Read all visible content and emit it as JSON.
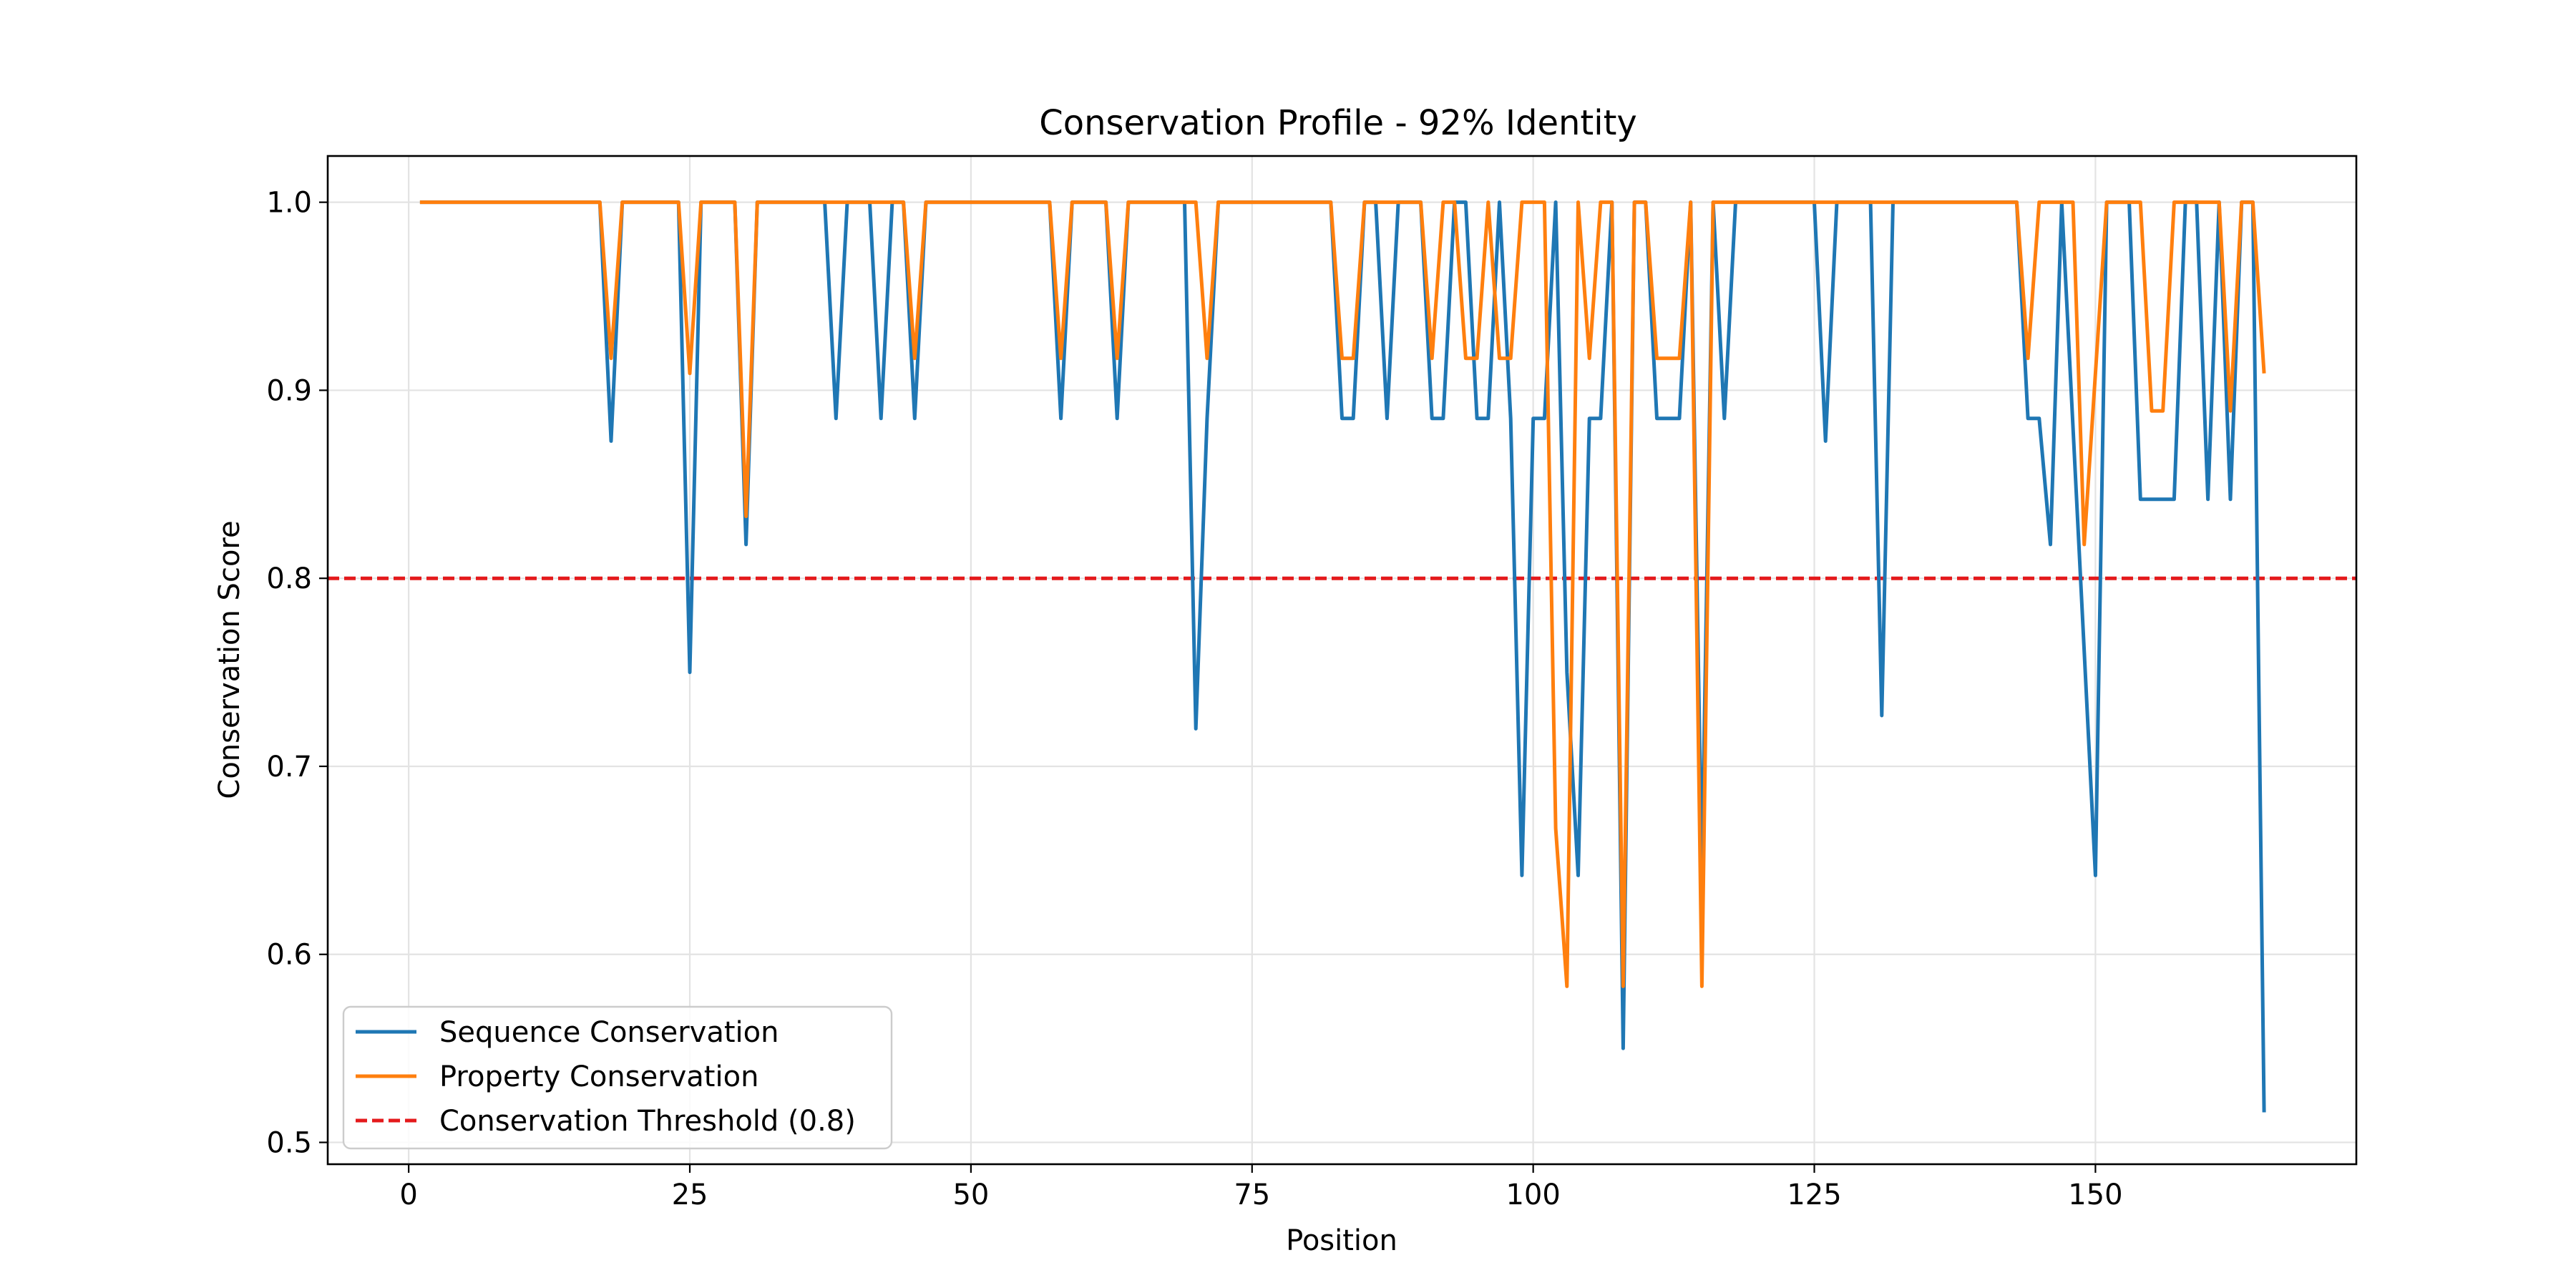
{
  "chart_data": {
    "type": "line",
    "title": "Conservation Profile - 92% Identity",
    "xlabel": "Position",
    "ylabel": "Conservation Score",
    "xlim": [
      -7.2,
      173.2
    ],
    "ylim": [
      0.4884,
      1.0246
    ],
    "xticks": [
      0,
      25,
      50,
      75,
      100,
      125,
      150
    ],
    "yticks": [
      0.5,
      0.6,
      0.7,
      0.8,
      0.9,
      1.0
    ],
    "ytick_labels": [
      "0.5",
      "0.6",
      "0.7",
      "0.8",
      "0.9",
      "1.0"
    ],
    "grid": true,
    "legend_position": "lower-left",
    "threshold": {
      "name": "Conservation Threshold (0.8)",
      "value": 0.8,
      "color": "#e41a1c",
      "style": "dashed"
    },
    "series": [
      {
        "name": "Sequence Conservation",
        "color": "#1f77b4",
        "points": [
          [
            1,
            1.0
          ],
          [
            17,
            1.0
          ],
          [
            18,
            0.873
          ],
          [
            19,
            1.0
          ],
          [
            24,
            1.0
          ],
          [
            25,
            0.75
          ],
          [
            26,
            1.0
          ],
          [
            29,
            1.0
          ],
          [
            30,
            0.818
          ],
          [
            31,
            1.0
          ],
          [
            37,
            1.0
          ],
          [
            38,
            0.885
          ],
          [
            39,
            1.0
          ],
          [
            41,
            1.0
          ],
          [
            42,
            0.885
          ],
          [
            43,
            1.0
          ],
          [
            44,
            1.0
          ],
          [
            45,
            0.885
          ],
          [
            46,
            1.0
          ],
          [
            57,
            1.0
          ],
          [
            58,
            0.885
          ],
          [
            59,
            1.0
          ],
          [
            62,
            1.0
          ],
          [
            63,
            0.885
          ],
          [
            64,
            1.0
          ],
          [
            69,
            1.0
          ],
          [
            70,
            0.72
          ],
          [
            71,
            0.885
          ],
          [
            72,
            1.0
          ],
          [
            82,
            1.0
          ],
          [
            83,
            0.885
          ],
          [
            84,
            0.885
          ],
          [
            85,
            1.0
          ],
          [
            86,
            1.0
          ],
          [
            87,
            0.885
          ],
          [
            88,
            1.0
          ],
          [
            90,
            1.0
          ],
          [
            91,
            0.885
          ],
          [
            92,
            0.885
          ],
          [
            93,
            1.0
          ],
          [
            94,
            1.0
          ],
          [
            95,
            0.885
          ],
          [
            96,
            0.885
          ],
          [
            97,
            1.0
          ],
          [
            98,
            0.885
          ],
          [
            99,
            0.642
          ],
          [
            100,
            0.885
          ],
          [
            101,
            0.885
          ],
          [
            102,
            1.0
          ],
          [
            103,
            0.75
          ],
          [
            104,
            0.642
          ],
          [
            105,
            0.885
          ],
          [
            106,
            0.885
          ],
          [
            107,
            1.0
          ],
          [
            108,
            0.55
          ],
          [
            109,
            1.0
          ],
          [
            110,
            1.0
          ],
          [
            111,
            0.885
          ],
          [
            112,
            0.885
          ],
          [
            113,
            0.885
          ],
          [
            114,
            1.0
          ],
          [
            115,
            0.642
          ],
          [
            116,
            1.0
          ],
          [
            117,
            0.885
          ],
          [
            118,
            1.0
          ],
          [
            125,
            1.0
          ],
          [
            126,
            0.873
          ],
          [
            127,
            1.0
          ],
          [
            130,
            1.0
          ],
          [
            131,
            0.727
          ],
          [
            132,
            1.0
          ],
          [
            143,
            1.0
          ],
          [
            144,
            0.885
          ],
          [
            145,
            0.885
          ],
          [
            146,
            0.818
          ],
          [
            147,
            1.0
          ],
          [
            150,
            0.642
          ],
          [
            151,
            1.0
          ],
          [
            153,
            1.0
          ],
          [
            154,
            0.842
          ],
          [
            157,
            0.842
          ],
          [
            158,
            1.0
          ],
          [
            159,
            1.0
          ],
          [
            160,
            0.842
          ],
          [
            161,
            1.0
          ],
          [
            162,
            0.842
          ],
          [
            163,
            1.0
          ],
          [
            164,
            1.0
          ],
          [
            165,
            0.516
          ]
        ]
      },
      {
        "name": "Property Conservation",
        "color": "#ff7f0e",
        "points": [
          [
            1,
            1.0
          ],
          [
            17,
            1.0
          ],
          [
            18,
            0.917
          ],
          [
            19,
            1.0
          ],
          [
            24,
            1.0
          ],
          [
            25,
            0.909
          ],
          [
            26,
            1.0
          ],
          [
            29,
            1.0
          ],
          [
            30,
            0.833
          ],
          [
            31,
            1.0
          ],
          [
            44,
            1.0
          ],
          [
            45,
            0.917
          ],
          [
            46,
            1.0
          ],
          [
            57,
            1.0
          ],
          [
            58,
            0.917
          ],
          [
            59,
            1.0
          ],
          [
            62,
            1.0
          ],
          [
            63,
            0.917
          ],
          [
            64,
            1.0
          ],
          [
            70,
            1.0
          ],
          [
            71,
            0.917
          ],
          [
            72,
            1.0
          ],
          [
            82,
            1.0
          ],
          [
            83,
            0.917
          ],
          [
            84,
            0.917
          ],
          [
            85,
            1.0
          ],
          [
            89,
            1.0
          ],
          [
            90,
            1.0
          ],
          [
            91,
            0.917
          ],
          [
            92,
            1.0
          ],
          [
            93,
            1.0
          ],
          [
            94,
            0.917
          ],
          [
            95,
            0.917
          ],
          [
            96,
            1.0
          ],
          [
            97,
            0.917
          ],
          [
            98,
            0.917
          ],
          [
            99,
            1.0
          ],
          [
            101,
            1.0
          ],
          [
            102,
            0.667
          ],
          [
            103,
            0.583
          ],
          [
            104,
            1.0
          ],
          [
            105,
            0.917
          ],
          [
            106,
            1.0
          ],
          [
            107,
            1.0
          ],
          [
            108,
            0.583
          ],
          [
            109,
            1.0
          ],
          [
            110,
            1.0
          ],
          [
            111,
            0.917
          ],
          [
            112,
            0.917
          ],
          [
            113,
            0.917
          ],
          [
            114,
            1.0
          ],
          [
            115,
            0.583
          ],
          [
            116,
            1.0
          ],
          [
            143,
            1.0
          ],
          [
            144,
            0.917
          ],
          [
            145,
            1.0
          ],
          [
            148,
            1.0
          ],
          [
            149,
            0.818
          ],
          [
            150,
            0.909
          ],
          [
            151,
            1.0
          ],
          [
            154,
            1.0
          ],
          [
            155,
            0.889
          ],
          [
            156,
            0.889
          ],
          [
            157,
            1.0
          ],
          [
            161,
            1.0
          ],
          [
            162,
            0.889
          ],
          [
            163,
            1.0
          ],
          [
            164,
            1.0
          ],
          [
            165,
            0.909
          ]
        ]
      }
    ]
  }
}
